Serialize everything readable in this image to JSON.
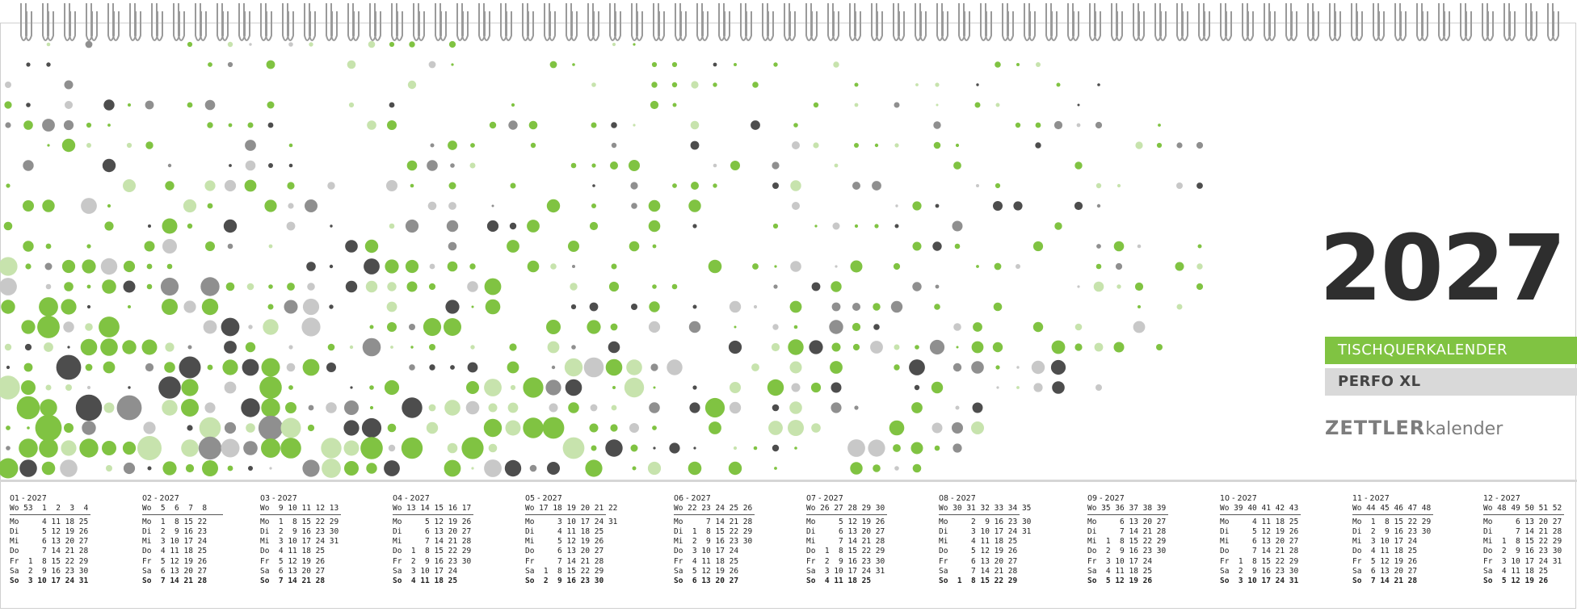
{
  "year": "2027",
  "product_line": "TISCHQUERKALENDER",
  "product_name": "PERFO XL",
  "brand": {
    "bold": "ZETTLER",
    "light": "kalender"
  },
  "colors": {
    "green": "#80c342",
    "light_green": "#c7e3ad",
    "dark_grey": "#4d4d4d",
    "mid_grey": "#8f8f8f",
    "light_grey": "#c8c8c8"
  },
  "months": [
    {
      "title": "01 - 2027",
      "rows": [
        "Wo 53  1  2  3  4",
        "Mo     4 11 18 25",
        "Di     5 12 19 26",
        "Mi     6 13 20 27",
        "Do     7 14 21 28",
        "Fr  1  8 15 22 29",
        "Sa  2  9 16 23 30",
        "So  3 10 17 24 31"
      ]
    },
    {
      "title": "02 - 2027",
      "rows": [
        "Wo  5  6  7  8",
        "Mo  1  8 15 22",
        "Di  2  9 16 23",
        "Mi  3 10 17 24",
        "Do  4 11 18 25",
        "Fr  5 12 19 26",
        "Sa  6 13 20 27",
        "So  7 14 21 28"
      ]
    },
    {
      "title": "03 - 2027",
      "rows": [
        "Wo  9 10 11 12 13",
        "Mo  1  8 15 22 29",
        "Di  2  9 16 23 30",
        "Mi  3 10 17 24 31",
        "Do  4 11 18 25",
        "Fr  5 12 19 26",
        "Sa  6 13 20 27",
        "So  7 14 21 28"
      ]
    },
    {
      "title": "04 - 2027",
      "rows": [
        "Wo 13 14 15 16 17",
        "Mo     5 12 19 26",
        "Di     6 13 20 27",
        "Mi     7 14 21 28",
        "Do  1  8 15 22 29",
        "Fr  2  9 16 23 30",
        "Sa  3 10 17 24",
        "So  4 11 18 25"
      ]
    },
    {
      "title": "05 - 2027",
      "rows": [
        "Wo 17 18 19 20 21 22",
        "Mo     3 10 17 24 31",
        "Di     4 11 18 25",
        "Mi     5 12 19 26",
        "Do     6 13 20 27",
        "Fr     7 14 21 28",
        "Sa  1  8 15 22 29",
        "So  2  9 16 23 30"
      ]
    },
    {
      "title": "06 - 2027",
      "rows": [
        "Wo 22 23 24 25 26",
        "Mo     7 14 21 28",
        "Di  1  8 15 22 29",
        "Mi  2  9 16 23 30",
        "Do  3 10 17 24",
        "Fr  4 11 18 25",
        "Sa  5 12 19 26",
        "So  6 13 20 27"
      ]
    },
    {
      "title": "07 - 2027",
      "rows": [
        "Wo 26 27 28 29 30",
        "Mo     5 12 19 26",
        "Di     6 13 20 27",
        "Mi     7 14 21 28",
        "Do  1  8 15 22 29",
        "Fr  2  9 16 23 30",
        "Sa  3 10 17 24 31",
        "So  4 11 18 25"
      ]
    },
    {
      "title": "08 - 2027",
      "rows": [
        "Wo 30 31 32 33 34 35",
        "Mo     2  9 16 23 30",
        "Di     3 10 17 24 31",
        "Mi     4 11 18 25",
        "Do     5 12 19 26",
        "Fr     6 13 20 27",
        "Sa     7 14 21 28",
        "So  1  8 15 22 29"
      ]
    },
    {
      "title": "09 - 2027",
      "rows": [
        "Wo 35 36 37 38 39",
        "Mo     6 13 20 27",
        "Di     7 14 21 28",
        "Mi  1  8 15 22 29",
        "Do  2  9 16 23 30",
        "Fr  3 10 17 24",
        "Sa  4 11 18 25",
        "So  5 12 19 26"
      ]
    },
    {
      "title": "10 - 2027",
      "rows": [
        "Wo 39 40 41 42 43",
        "Mo     4 11 18 25",
        "Di     5 12 19 26",
        "Mi     6 13 20 27",
        "Do     7 14 21 28",
        "Fr  1  8 15 22 29",
        "Sa  2  9 16 23 30",
        "So  3 10 17 24 31"
      ]
    },
    {
      "title": "11 - 2027",
      "rows": [
        "Wo 44 45 46 47 48",
        "Mo  1  8 15 22 29",
        "Di  2  9 16 23 30",
        "Mi  3 10 17 24",
        "Do  4 11 18 25",
        "Fr  5 12 19 26",
        "Sa  6 13 20 27",
        "So  7 14 21 28"
      ]
    },
    {
      "title": "12 - 2027",
      "rows": [
        "Wo 48 49 50 51 52",
        "Mo     6 13 20 27",
        "Di     7 14 21 28",
        "Mi  1  8 15 22 29",
        "Do  2  9 16 23 30",
        "Fr  3 10 17 24 31",
        "Sa  4 11 18 25",
        "So  5 12 19 26"
      ]
    }
  ]
}
